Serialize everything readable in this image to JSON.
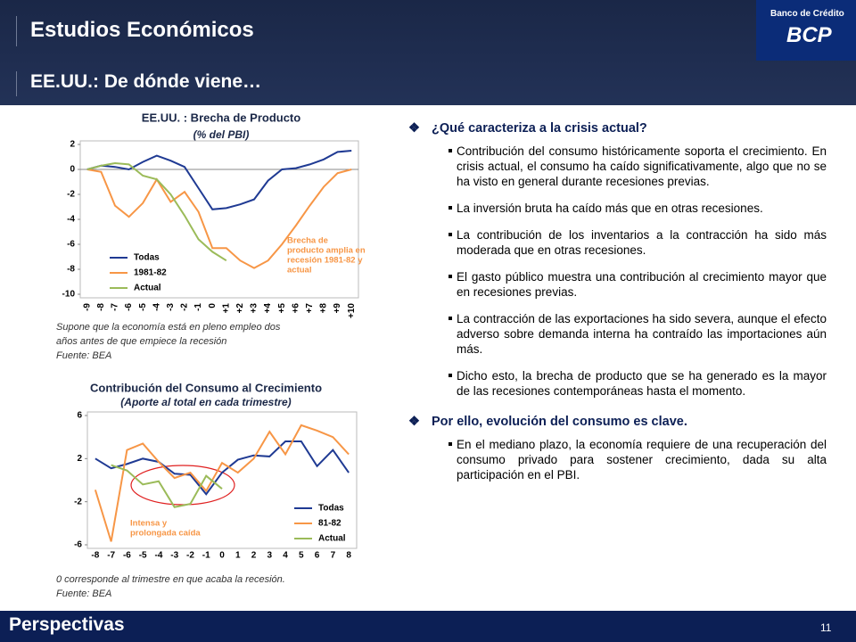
{
  "header": {
    "title": "Estudios Económicos",
    "subtitle": "EE.UU.: De dónde viene…",
    "logo_top": "Banco de Crédito",
    "logo": "BCP"
  },
  "chart_data": [
    {
      "type": "line",
      "title": "EE.UU. : Brecha de Producto",
      "subtitle": "(% del PBI)",
      "categories": [
        "-9",
        "-8",
        "-7",
        "-6",
        "-5",
        "-4",
        "-3",
        "-2",
        "-1",
        "0",
        "+1",
        "+2",
        "+3",
        "+4",
        "+5",
        "+6",
        "+7",
        "+8",
        "+9",
        "+10"
      ],
      "series": [
        {
          "name": "Todas",
          "color": "#1f3a93",
          "values": [
            0,
            0.3,
            0.2,
            0,
            0.6,
            1.1,
            0.7,
            0.2,
            -1.5,
            -3.2,
            -3.1,
            -2.8,
            -2.4,
            -0.9,
            0,
            0.1,
            0.4,
            0.8,
            1.4,
            1.5
          ]
        },
        {
          "name": "1981-82",
          "color": "#f79646",
          "values": [
            0,
            -0.2,
            -2.9,
            -3.8,
            -2.7,
            -0.8,
            -2.6,
            -1.8,
            -3.4,
            -6.3,
            -6.3,
            -7.3,
            -7.9,
            -7.3,
            -6,
            -4.5,
            -2.9,
            -1.4,
            -0.3,
            0
          ]
        },
        {
          "name": "Actual",
          "color": "#9bbb59",
          "values": [
            0,
            0.3,
            0.5,
            0.4,
            -0.5,
            -0.8,
            -2,
            -3.7,
            -5.6,
            -6.6,
            -7.3,
            null,
            null,
            null,
            null,
            null,
            null,
            null,
            null,
            null
          ]
        }
      ],
      "ylim": [
        -10,
        2
      ],
      "yticks": [
        2,
        0,
        -2,
        -4,
        -6,
        -8,
        -10
      ],
      "grid": false,
      "annotation": [
        "Brecha de",
        "producto amplia en",
        "recesión 1981-82 y",
        "actual"
      ],
      "notes": [
        "Supone que la economía está en pleno empleo dos",
        "años antes de que empiece la recesión",
        "Fuente: BEA"
      ]
    },
    {
      "type": "line",
      "title": "Contribución del Consumo al Crecimiento",
      "subtitle": "(Aporte al total en cada trimestre)",
      "categories": [
        "-8",
        "-7",
        "-6",
        "-5",
        "-4",
        "-3",
        "-2",
        "-1",
        "0",
        "1",
        "2",
        "3",
        "4",
        "5",
        "6",
        "7",
        "8"
      ],
      "series": [
        {
          "name": "Todas",
          "color": "#1f3a93",
          "values": [
            2.0,
            1.1,
            1.5,
            2.0,
            1.7,
            0.6,
            0.5,
            -1.3,
            0.7,
            1.9,
            2.3,
            2.2,
            3.6,
            3.6,
            1.3,
            2.8,
            0.7
          ]
        },
        {
          "name": "81-82",
          "color": "#f79646",
          "values": [
            -0.9,
            -5.7,
            2.8,
            3.4,
            1.7,
            0.2,
            0.7,
            -1,
            1.6,
            0.7,
            2,
            4.5,
            2.4,
            5.1,
            4.6,
            4,
            2.4
          ]
        },
        {
          "name": "Actual",
          "color": "#9bbb59",
          "values": [
            null,
            1.4,
            0.9,
            -0.4,
            -0.1,
            -2.5,
            -2.2,
            0.4,
            -0.8,
            null,
            null,
            null,
            null,
            null,
            null,
            null,
            null
          ]
        }
      ],
      "ylim": [
        -6,
        6
      ],
      "yticks": [
        6,
        2,
        -2,
        -6
      ],
      "grid": false,
      "annotation": [
        "Intensa y",
        "prolongada caída"
      ],
      "notes": [
        "0 corresponde al trimestre en que acaba la recesión.",
        "Fuente: BEA"
      ]
    }
  ],
  "content": {
    "sections": [
      {
        "heading": "¿Qué caracteriza a la crisis actual?",
        "bullets": [
          "Contribución del consumo históricamente soporta el crecimiento. En crisis actual, el consumo ha caído significativamente, algo que no se ha visto en general durante recesiones previas.",
          "La inversión bruta ha caído más que en otras recesiones.",
          "La contribución de los inventarios a la contracción ha sido más moderada que en otras recesiones.",
          "El gasto público muestra una contribución al crecimiento mayor que en recesiones previas.",
          "La contracción de las exportaciones ha sido severa, aunque el efecto adverso sobre demanda interna ha contraído las importaciones aún más.",
          "Dicho esto, la brecha de producto que se ha generado es la mayor de las recesiones contemporáneas hasta el momento."
        ]
      },
      {
        "heading": "Por ello, evolución del consumo es clave.",
        "bullets": [
          "En el mediano plazo, la economía requiere de una recuperación del consumo privado para sostener crecimiento, dada su alta participación en el PBI."
        ]
      }
    ]
  },
  "footer": {
    "title": "Perspectivas",
    "page": "11"
  }
}
